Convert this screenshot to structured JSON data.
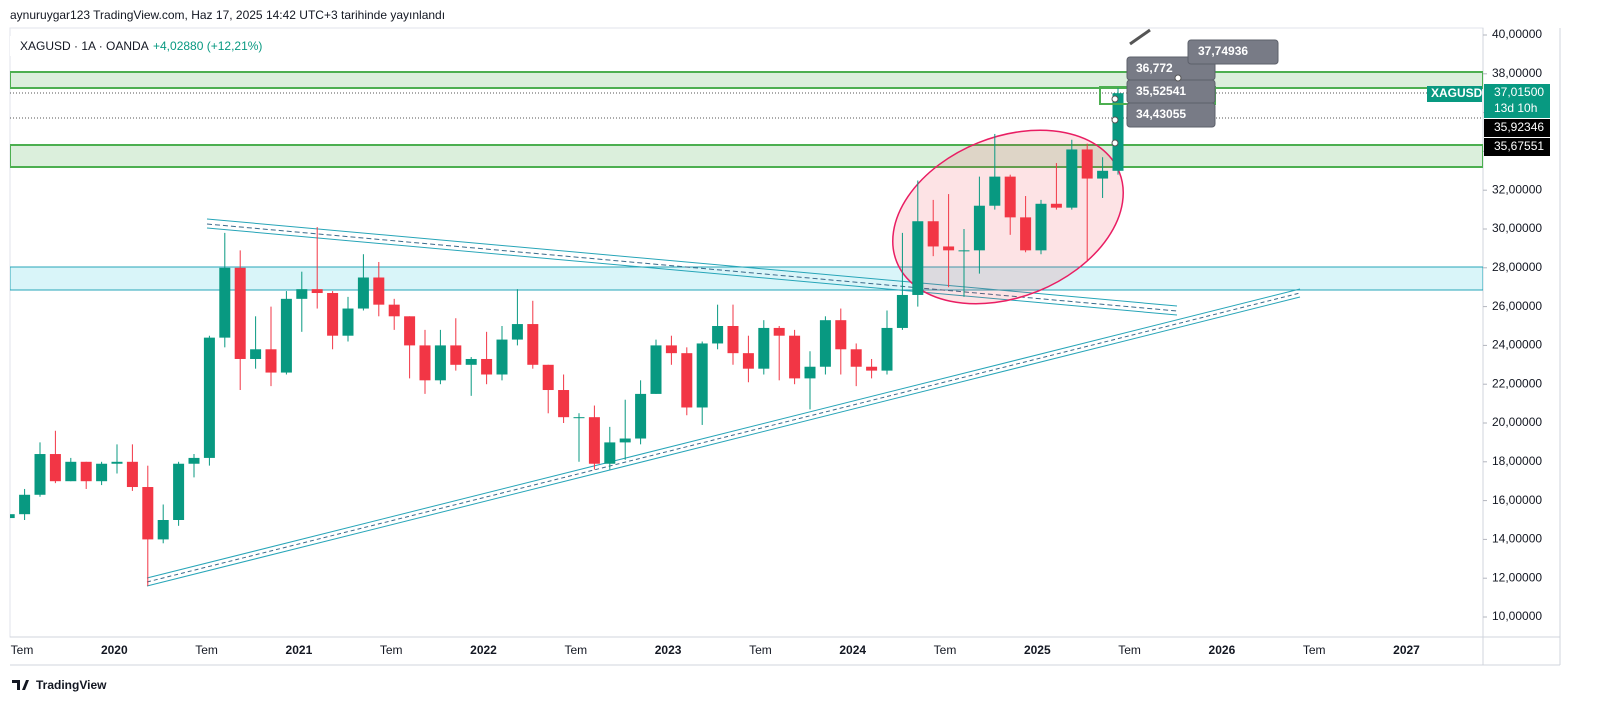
{
  "header": "aynuruygar123 TradingView.com, Haz 17, 2025 14:42 UTC+3 tarihinde yayınlandı",
  "footer": "TradingView",
  "chart_data": {
    "type": "candlestick",
    "symbol": "XAGUSD · 1A · OANDA",
    "change": "+4,02880 (+12,21%)",
    "up_color": "#089981",
    "down_color": "#f23645",
    "x": [
      "2019-06",
      "2019-07",
      "2019-08",
      "2019-09",
      "2019-10",
      "2019-11",
      "2019-12",
      "2020-01",
      "2020-02",
      "2020-03",
      "2020-04",
      "2020-05",
      "2020-06",
      "2020-07",
      "2020-08",
      "2020-09",
      "2020-10",
      "2020-11",
      "2020-12",
      "2021-01",
      "2021-02",
      "2021-03",
      "2021-04",
      "2021-05",
      "2021-06",
      "2021-07",
      "2021-08",
      "2021-09",
      "2021-10",
      "2021-11",
      "2021-12",
      "2022-01",
      "2022-02",
      "2022-03",
      "2022-04",
      "2022-05",
      "2022-06",
      "2022-07",
      "2022-08",
      "2022-09",
      "2022-10",
      "2022-11",
      "2022-12",
      "2023-01",
      "2023-02",
      "2023-03",
      "2023-04",
      "2023-05",
      "2023-06",
      "2023-07",
      "2023-08",
      "2023-09",
      "2023-10",
      "2023-11",
      "2023-12",
      "2024-01",
      "2024-02",
      "2024-03",
      "2024-04",
      "2024-05",
      "2024-06",
      "2024-07",
      "2024-08",
      "2024-09",
      "2024-10",
      "2024-11",
      "2024-12",
      "2025-01",
      "2025-02",
      "2025-03",
      "2025-04",
      "2025-05",
      "2025-06"
    ],
    "open": [
      15.1,
      15.3,
      16.3,
      18.4,
      17.0,
      18.0,
      17.0,
      17.9,
      18.0,
      16.7,
      14.0,
      15.0,
      17.9,
      18.2,
      24.4,
      28.0,
      23.3,
      23.8,
      22.6,
      26.4,
      26.9,
      26.7,
      24.5,
      25.9,
      27.5,
      26.1,
      25.5,
      24.0,
      22.2,
      24.0,
      23.0,
      23.3,
      22.5,
      24.3,
      25.1,
      23.0,
      21.7,
      20.3,
      20.3,
      17.9,
      19.0,
      19.2,
      21.5,
      24.0,
      23.6,
      20.8,
      24.1,
      25.0,
      23.6,
      22.8,
      24.9,
      24.5,
      22.3,
      22.9,
      25.3,
      23.8,
      22.9,
      22.7,
      24.9,
      26.6,
      30.4,
      29.1,
      28.9,
      28.9,
      31.2,
      32.7,
      30.6,
      28.9,
      31.3,
      31.1,
      34.1,
      32.6,
      33.0
    ],
    "high": [
      15.5,
      16.6,
      19.0,
      19.6,
      18.2,
      18.0,
      18.0,
      18.9,
      18.9,
      17.8,
      15.8,
      18.0,
      18.4,
      24.5,
      29.8,
      28.9,
      25.5,
      26.0,
      26.8,
      27.8,
      30.1,
      26.8,
      26.5,
      28.7,
      28.3,
      26.4,
      25.5,
      24.8,
      24.8,
      25.4,
      23.4,
      24.7,
      25.0,
      26.9,
      26.3,
      23.0,
      22.5,
      20.5,
      20.9,
      19.8,
      21.2,
      22.2,
      24.3,
      24.5,
      23.9,
      24.2,
      26.1,
      26.1,
      24.5,
      25.3,
      25.0,
      24.8,
      23.7,
      25.5,
      25.9,
      24.1,
      23.3,
      25.8,
      29.8,
      32.5,
      31.5,
      31.8,
      30.0,
      32.7,
      34.9,
      32.8,
      31.7,
      31.5,
      33.4,
      34.6,
      34.4,
      33.7,
      37.3
    ],
    "low": [
      14.6,
      15.0,
      16.2,
      16.9,
      17.0,
      16.6,
      16.8,
      17.4,
      16.5,
      11.6,
      13.8,
      14.7,
      17.2,
      17.8,
      23.9,
      21.7,
      22.8,
      21.9,
      22.5,
      24.7,
      25.9,
      23.8,
      24.2,
      25.8,
      25.5,
      24.8,
      22.3,
      21.5,
      22.0,
      22.7,
      21.4,
      22.0,
      22.2,
      24.0,
      22.8,
      20.5,
      20.0,
      18.0,
      17.6,
      17.6,
      18.1,
      18.9,
      21.5,
      23.0,
      20.4,
      19.9,
      23.8,
      23.0,
      22.1,
      22.5,
      22.2,
      22.0,
      20.7,
      22.5,
      22.5,
      21.9,
      22.3,
      22.5,
      24.8,
      26.0,
      28.6,
      27.0,
      26.5,
      27.7,
      31.0,
      29.7,
      28.8,
      28.7,
      31.0,
      31.0,
      28.4,
      31.6,
      32.8
    ],
    "close": [
      15.3,
      16.3,
      18.4,
      17.0,
      18.0,
      17.0,
      17.9,
      18.0,
      16.7,
      14.0,
      15.0,
      17.9,
      18.2,
      24.4,
      28.0,
      23.3,
      23.8,
      22.6,
      26.4,
      26.9,
      26.7,
      24.5,
      25.9,
      27.5,
      26.1,
      25.5,
      24.0,
      22.2,
      24.0,
      23.0,
      23.3,
      22.5,
      24.3,
      25.1,
      23.0,
      21.7,
      20.3,
      20.3,
      17.9,
      19.0,
      19.2,
      21.5,
      24.0,
      23.6,
      20.8,
      24.1,
      25.0,
      23.6,
      22.8,
      24.9,
      24.5,
      22.3,
      22.9,
      25.3,
      23.8,
      22.9,
      22.7,
      24.9,
      26.6,
      30.4,
      29.1,
      28.9,
      28.9,
      31.2,
      32.7,
      30.6,
      28.9,
      31.3,
      31.1,
      34.1,
      32.6,
      33.0,
      37.0
    ],
    "ylim": [
      10,
      40
    ],
    "yticks": [
      {
        "value": 10,
        "label": "10,00000"
      },
      {
        "value": 12,
        "label": "12,00000"
      },
      {
        "value": 14,
        "label": "14,00000"
      },
      {
        "value": 16,
        "label": "16,00000"
      },
      {
        "value": 18,
        "label": "18,00000"
      },
      {
        "value": 20,
        "label": "20,00000"
      },
      {
        "value": 22,
        "label": "22,00000"
      },
      {
        "value": 24,
        "label": "24,00000"
      },
      {
        "value": 26,
        "label": "26,00000"
      },
      {
        "value": 28,
        "label": "28,00000"
      },
      {
        "value": 30,
        "label": "30,00000"
      },
      {
        "value": 32,
        "label": "32,00000"
      },
      {
        "value": 34,
        "label": "34,00000"
      },
      {
        "value": 36,
        "label": "36,00000"
      },
      {
        "value": 38,
        "label": "38,00000"
      },
      {
        "value": 40,
        "label": "40,00000"
      }
    ],
    "time_labels": [
      "Tem",
      "2020",
      "Tem",
      "2021",
      "Tem",
      "2022",
      "Tem",
      "2023",
      "Tem",
      "2024",
      "Tem",
      "2025",
      "Tem",
      "2026",
      "Tem",
      "2027"
    ],
    "price_badge": {
      "symbol": "XAGUSD",
      "price": "37,01500",
      "countdown": "13d 10h"
    },
    "price_labels": [
      "35,92346",
      "35,67551"
    ],
    "annotations": [
      "37,74936",
      "36,772",
      "35,52541",
      "34,43055"
    ]
  }
}
